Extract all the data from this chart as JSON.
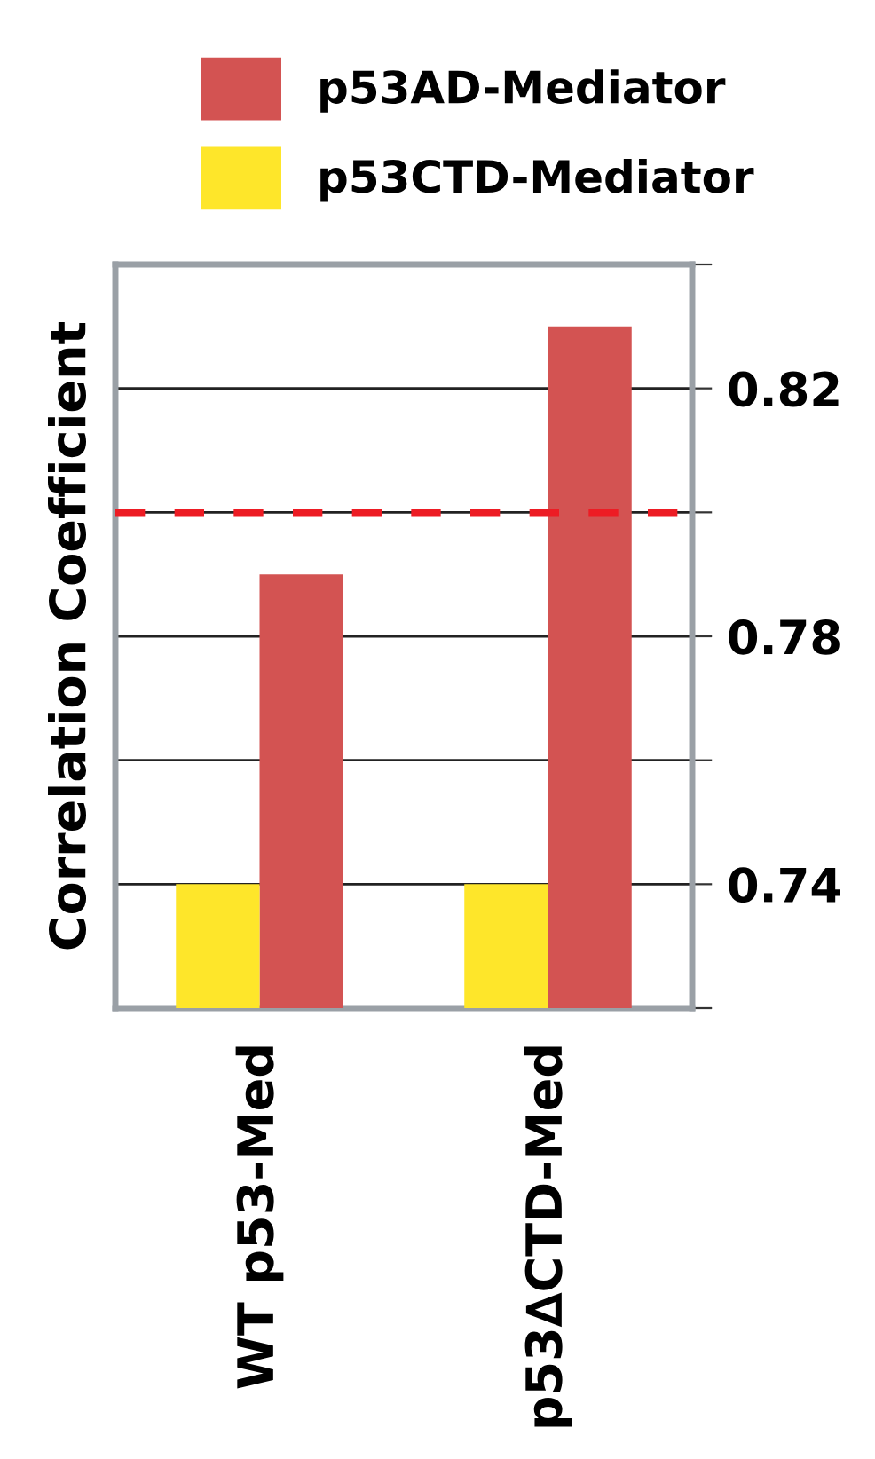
{
  "chart_data": {
    "type": "bar",
    "ylabel": "Correlation Coefficient",
    "categories": [
      "WT p53-Med",
      "p53∆CTD-Med"
    ],
    "series": [
      {
        "name": "p53AD-Mediator",
        "color": "#d35352",
        "values": [
          0.79,
          0.83
        ]
      },
      {
        "name": "p53CTD-Mediator",
        "color": "#fee62a",
        "values": [
          0.74,
          0.74
        ]
      }
    ],
    "ylim": [
      0.72,
      0.84
    ],
    "yticks": [
      {
        "value": 0.72,
        "label": null
      },
      0.74,
      {
        "value": 0.76,
        "label": null
      },
      0.78,
      {
        "value": 0.8,
        "label": null
      },
      0.82,
      {
        "value": 0.84,
        "label": null
      }
    ],
    "ref_lines": [
      {
        "axis": "y",
        "value": 0.8,
        "color": "#ed1c24",
        "line_style": "dashed"
      }
    ],
    "grid": "y",
    "legend": "top"
  }
}
